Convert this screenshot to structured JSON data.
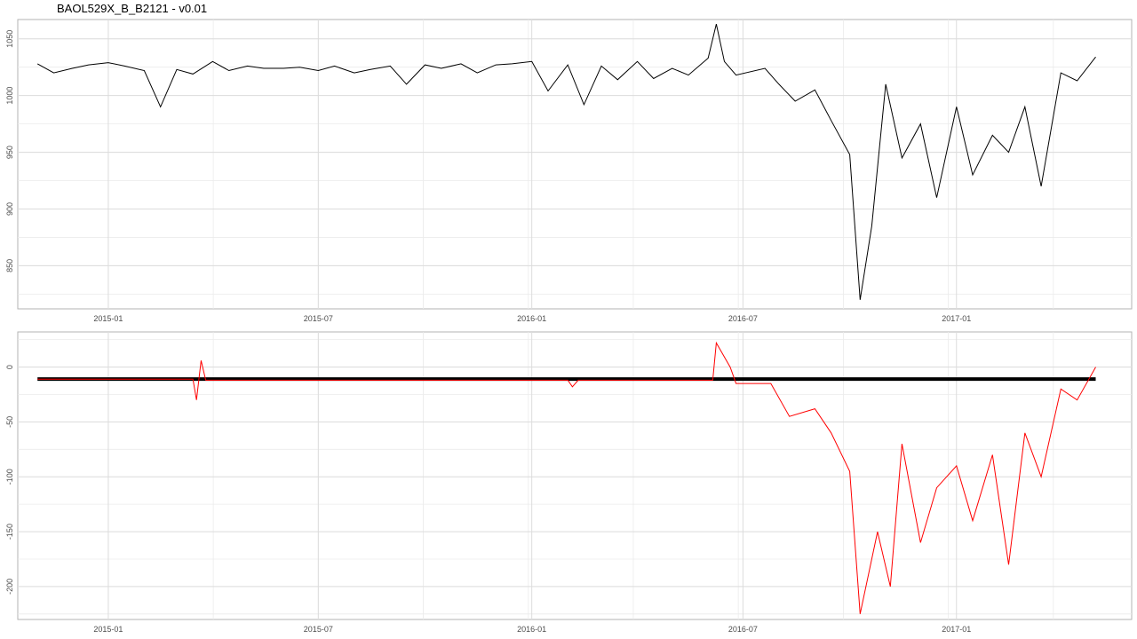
{
  "title": "BAOL529X_B_B2121 - v0.01",
  "colors": {
    "series_top": "#000000",
    "series_bottom": "#ff0000",
    "baseline": "#000000",
    "grid": "#dcdcdc",
    "panel_border": "#b3b3b3"
  },
  "chart_data": [
    {
      "type": "line",
      "title": "BAOL529X_B_B2121 - v0.01",
      "xlabel": "",
      "ylabel": "",
      "x_range": [
        "2014-10-15",
        "2017-06-01"
      ],
      "ylim": [
        812,
        1067
      ],
      "grid": true,
      "x_ticks": [
        "2015-01",
        "2015-07",
        "2016-01",
        "2016-07",
        "2017-01"
      ],
      "y_ticks": [
        850,
        900,
        950,
        1000,
        1050
      ],
      "series": [
        {
          "color": "#000000",
          "points": [
            [
              "2014-11-01",
              1028
            ],
            [
              "2014-11-15",
              1020
            ],
            [
              "2014-12-01",
              1024
            ],
            [
              "2014-12-15",
              1027
            ],
            [
              "2015-01-01",
              1029
            ],
            [
              "2015-01-15",
              1026
            ],
            [
              "2015-02-01",
              1022
            ],
            [
              "2015-02-15",
              990
            ],
            [
              "2015-03-01",
              1023
            ],
            [
              "2015-03-15",
              1019
            ],
            [
              "2015-04-01",
              1030
            ],
            [
              "2015-04-15",
              1022
            ],
            [
              "2015-05-01",
              1026
            ],
            [
              "2015-05-15",
              1024
            ],
            [
              "2015-06-01",
              1024
            ],
            [
              "2015-06-15",
              1025
            ],
            [
              "2015-07-01",
              1022
            ],
            [
              "2015-07-15",
              1026
            ],
            [
              "2015-08-01",
              1020
            ],
            [
              "2015-08-15",
              1023
            ],
            [
              "2015-09-01",
              1026
            ],
            [
              "2015-09-15",
              1010
            ],
            [
              "2015-10-01",
              1027
            ],
            [
              "2015-10-15",
              1024
            ],
            [
              "2015-11-01",
              1028
            ],
            [
              "2015-11-15",
              1020
            ],
            [
              "2015-12-01",
              1027
            ],
            [
              "2015-12-15",
              1028
            ],
            [
              "2016-01-01",
              1030
            ],
            [
              "2016-01-15",
              1004
            ],
            [
              "2016-02-01",
              1027
            ],
            [
              "2016-02-15",
              992
            ],
            [
              "2016-03-01",
              1026
            ],
            [
              "2016-03-15",
              1014
            ],
            [
              "2016-04-01",
              1030
            ],
            [
              "2016-04-15",
              1015
            ],
            [
              "2016-05-01",
              1024
            ],
            [
              "2016-05-15",
              1018
            ],
            [
              "2016-06-01",
              1033
            ],
            [
              "2016-06-08",
              1063
            ],
            [
              "2016-06-15",
              1030
            ],
            [
              "2016-06-25",
              1018
            ],
            [
              "2016-07-20",
              1024
            ],
            [
              "2016-08-01",
              1010
            ],
            [
              "2016-08-15",
              995
            ],
            [
              "2016-09-01",
              1005
            ],
            [
              "2016-09-15",
              978
            ],
            [
              "2016-10-01",
              948
            ],
            [
              "2016-10-10",
              820
            ],
            [
              "2016-10-20",
              885
            ],
            [
              "2016-11-01",
              1010
            ],
            [
              "2016-11-15",
              945
            ],
            [
              "2016-12-01",
              975
            ],
            [
              "2016-12-15",
              910
            ],
            [
              "2017-01-01",
              990
            ],
            [
              "2017-01-15",
              930
            ],
            [
              "2017-02-01",
              965
            ],
            [
              "2017-02-15",
              950
            ],
            [
              "2017-03-01",
              990
            ],
            [
              "2017-03-15",
              920
            ],
            [
              "2017-04-01",
              1020
            ],
            [
              "2017-04-15",
              1013
            ],
            [
              "2017-05-01",
              1034
            ]
          ]
        }
      ]
    },
    {
      "type": "line",
      "xlabel": "",
      "ylabel": "",
      "x_range": [
        "2014-10-15",
        "2017-06-01"
      ],
      "ylim": [
        -230,
        32
      ],
      "grid": true,
      "x_ticks": [
        "2015-01",
        "2015-07",
        "2016-01",
        "2016-07",
        "2017-01"
      ],
      "y_ticks": [
        0,
        -50,
        -100,
        -150,
        -200
      ],
      "baseline": -11,
      "series": [
        {
          "color": "#ff0000",
          "points": [
            [
              "2014-11-01",
              -11
            ],
            [
              "2015-03-15",
              -11
            ],
            [
              "2015-03-18",
              -30
            ],
            [
              "2015-03-22",
              6
            ],
            [
              "2015-03-26",
              -12
            ],
            [
              "2016-02-01",
              -12
            ],
            [
              "2016-02-05",
              -18
            ],
            [
              "2016-02-10",
              -12
            ],
            [
              "2016-06-05",
              -12
            ],
            [
              "2016-06-08",
              22
            ],
            [
              "2016-06-20",
              0
            ],
            [
              "2016-06-25",
              -15
            ],
            [
              "2016-07-25",
              -15
            ],
            [
              "2016-08-10",
              -45
            ],
            [
              "2016-09-01",
              -38
            ],
            [
              "2016-09-15",
              -60
            ],
            [
              "2016-10-01",
              -95
            ],
            [
              "2016-10-10",
              -225
            ],
            [
              "2016-10-25",
              -150
            ],
            [
              "2016-11-05",
              -200
            ],
            [
              "2016-11-15",
              -70
            ],
            [
              "2016-12-01",
              -160
            ],
            [
              "2016-12-15",
              -110
            ],
            [
              "2017-01-01",
              -90
            ],
            [
              "2017-01-15",
              -140
            ],
            [
              "2017-02-01",
              -80
            ],
            [
              "2017-02-15",
              -180
            ],
            [
              "2017-03-01",
              -60
            ],
            [
              "2017-03-15",
              -100
            ],
            [
              "2017-04-01",
              -20
            ],
            [
              "2017-04-15",
              -30
            ],
            [
              "2017-05-01",
              0
            ]
          ]
        }
      ]
    }
  ]
}
